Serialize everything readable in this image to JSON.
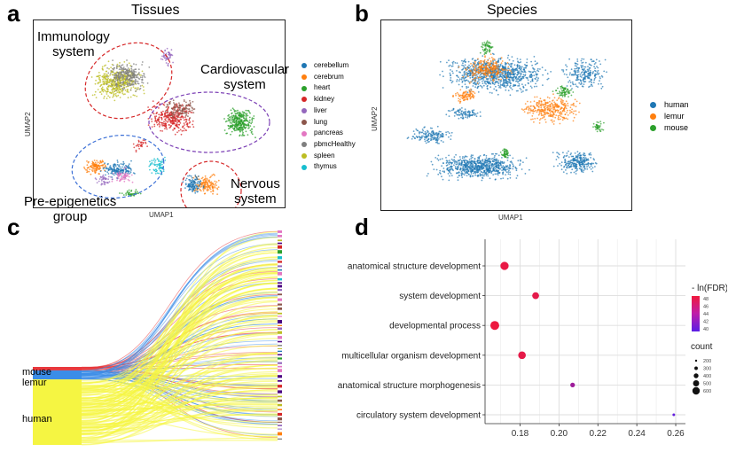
{
  "panel_a": {
    "letter": "a",
    "title": "Tissues",
    "xlabel": "UMAP1",
    "ylabel": "UMAP2",
    "annotations": {
      "immunology": [
        "Immunology",
        "system"
      ],
      "cardiovascular": [
        "Cardiovascular",
        "system"
      ],
      "pre_epigenetics": [
        "Pre-epigenetics",
        "group"
      ],
      "nervous": [
        "Nervous",
        "system"
      ]
    },
    "legend": [
      {
        "label": "cerebellum",
        "color": "#1f77b4"
      },
      {
        "label": "cerebrum",
        "color": "#ff7f0e"
      },
      {
        "label": "heart",
        "color": "#2ca02c"
      },
      {
        "label": "kidney",
        "color": "#d62728"
      },
      {
        "label": "liver",
        "color": "#9467bd"
      },
      {
        "label": "lung",
        "color": "#8c564b"
      },
      {
        "label": "pancreas",
        "color": "#e377c2"
      },
      {
        "label": "pbmcHealthy",
        "color": "#7f7f7f"
      },
      {
        "label": "spleen",
        "color": "#bcbd22"
      },
      {
        "label": "thymus",
        "color": "#17becf"
      }
    ]
  },
  "panel_b": {
    "letter": "b",
    "title": "Species",
    "xlabel": "UMAP1",
    "ylabel": "UMAP2",
    "legend": [
      {
        "label": "human",
        "color": "#1f77b4"
      },
      {
        "label": "lemur",
        "color": "#ff7f0e"
      },
      {
        "label": "mouse",
        "color": "#2ca02c"
      }
    ]
  },
  "panel_c": {
    "letter": "c",
    "sources": [
      {
        "label": "mouse",
        "color": "#e8383d"
      },
      {
        "label": "lemur",
        "color": "#3b8de8"
      },
      {
        "label": "human",
        "color": "#f5f542"
      }
    ]
  },
  "panel_d": {
    "letter": "d",
    "legend_color_title": "- ln(FDR)",
    "legend_color_ticks": [
      "48",
      "46",
      "44",
      "42",
      "40"
    ],
    "legend_size_title": "count",
    "legend_size_ticks": [
      "200",
      "300",
      "400",
      "500",
      "600"
    ]
  },
  "chart_data": [
    {
      "type": "scatter",
      "panel": "a",
      "title": "Tissues",
      "xlabel": "UMAP1",
      "ylabel": "UMAP2",
      "series": [
        "cerebellum",
        "cerebrum",
        "heart",
        "kidney",
        "liver",
        "lung",
        "pancreas",
        "pbmcHealthy",
        "spleen",
        "thymus"
      ],
      "groups": [
        "Immunology system",
        "Cardiovascular system",
        "Pre-epigenetics group",
        "Nervous system"
      ]
    },
    {
      "type": "scatter",
      "panel": "b",
      "title": "Species",
      "xlabel": "UMAP1",
      "ylabel": "UMAP2",
      "series": [
        "human",
        "lemur",
        "mouse"
      ]
    },
    {
      "type": "sankey",
      "panel": "c",
      "sources": [
        "mouse",
        "lemur",
        "human"
      ],
      "source_share": [
        0.045,
        0.115,
        0.84
      ]
    },
    {
      "type": "scatter",
      "panel": "d",
      "title": "",
      "xlabel": "",
      "ylabel": "",
      "categories": [
        "anatomical structure development",
        "system development",
        "developmental process",
        "multicellular organism development",
        "anatomical structure morphogenesis",
        "circulatory system development"
      ],
      "x": [
        0.172,
        0.188,
        0.167,
        0.181,
        0.207,
        0.259
      ],
      "count": [
        560,
        470,
        600,
        520,
        330,
        200
      ],
      "neg_ln_fdr": [
        48.5,
        48.2,
        48.8,
        48.3,
        43.5,
        39.5
      ],
      "xlim": [
        0.162,
        0.265
      ],
      "xticks": [
        0.18,
        0.2,
        0.22,
        0.24,
        0.26
      ],
      "xtick_labels": [
        "0.18",
        "0.20",
        "0.22",
        "0.24",
        "0.26"
      ],
      "color_range": [
        39,
        49
      ],
      "size_range": [
        200,
        600
      ]
    }
  ]
}
